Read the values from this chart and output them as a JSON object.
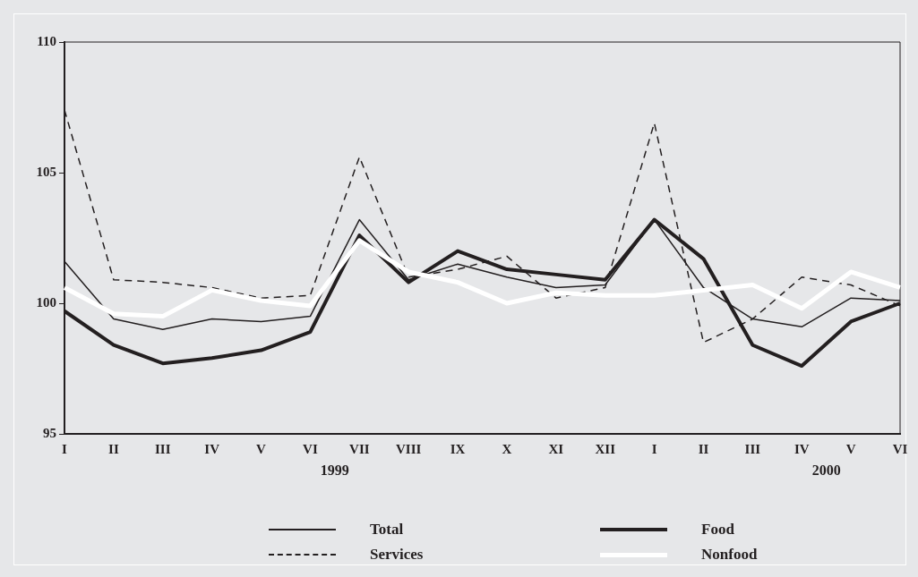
{
  "chart_data": {
    "type": "line",
    "categories": [
      "I",
      "II",
      "III",
      "IV",
      "V",
      "VI",
      "VII",
      "VIII",
      "IX",
      "X",
      "XI",
      "XII",
      "I",
      "II",
      "III",
      "IV",
      "V",
      "VI"
    ],
    "series": [
      {
        "name": "Total",
        "color": "#231f20",
        "line_style": "solid",
        "values": [
          101.6,
          99.4,
          99.0,
          99.4,
          99.3,
          99.5,
          103.2,
          100.9,
          101.5,
          101.0,
          100.6,
          100.7,
          103.2,
          100.6,
          99.4,
          99.1,
          100.2,
          100.1
        ]
      },
      {
        "name": "Services",
        "color": "#231f20",
        "line_style": "dashed",
        "values": [
          107.4,
          100.9,
          100.8,
          100.6,
          100.2,
          100.3,
          105.6,
          101.0,
          101.3,
          101.8,
          100.2,
          100.6,
          106.9,
          98.5,
          99.4,
          101.0,
          100.7,
          99.9
        ]
      },
      {
        "name": "Food",
        "color": "#231f20",
        "line_style": "solid",
        "values": [
          99.7,
          98.4,
          97.7,
          97.9,
          98.2,
          98.9,
          102.6,
          100.8,
          102.0,
          101.3,
          101.1,
          100.9,
          103.2,
          101.7,
          98.4,
          97.6,
          99.3,
          100.0
        ]
      },
      {
        "name": "Nonfood",
        "color": "#ffffff",
        "line_style": "solid",
        "values": [
          100.6,
          99.6,
          99.5,
          100.5,
          100.1,
          99.9,
          102.4,
          101.2,
          100.8,
          100.0,
          100.4,
          100.3,
          100.3,
          100.5,
          100.7,
          99.8,
          101.2,
          100.6
        ]
      }
    ],
    "annotations": [
      "1999",
      "2000"
    ],
    "ylim": [
      95,
      110
    ],
    "yticks": [
      95,
      105,
      100,
      110
    ],
    "grid": false,
    "legend": "bottom",
    "marker": "none"
  }
}
